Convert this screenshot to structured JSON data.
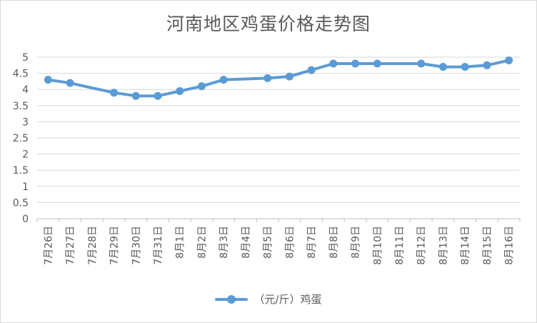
{
  "chart_data": {
    "type": "line",
    "title": "河南地区鸡蛋价格走势图",
    "xlabel": "",
    "ylabel": "",
    "ylim": [
      0,
      5
    ],
    "yticks": [
      "0",
      "0.5",
      "1",
      "1.5",
      "2",
      "2.5",
      "3",
      "3.5",
      "4",
      "4.5",
      "5"
    ],
    "grid": true,
    "legend_position": "bottom",
    "categories": [
      "7月26日",
      "7月27日",
      "7月28日",
      "7月29日",
      "7月30日",
      "7月31日",
      "8月1日",
      "8月2日",
      "8月3日",
      "8月4日",
      "8月5日",
      "8月6日",
      "8月7日",
      "8月8日",
      "8月9日",
      "8月10日",
      "8月11日",
      "8月12日",
      "8月13日",
      "8月14日",
      "8月15日",
      "8月16日"
    ],
    "series": [
      {
        "name": "（元/斤）鸡蛋",
        "color": "#5b9bd5",
        "values": [
          4.3,
          4.2,
          null,
          3.9,
          3.8,
          3.8,
          3.95,
          4.1,
          4.3,
          null,
          4.35,
          4.4,
          4.6,
          4.8,
          4.8,
          4.8,
          null,
          4.8,
          4.7,
          4.7,
          4.75,
          4.9
        ]
      }
    ]
  }
}
